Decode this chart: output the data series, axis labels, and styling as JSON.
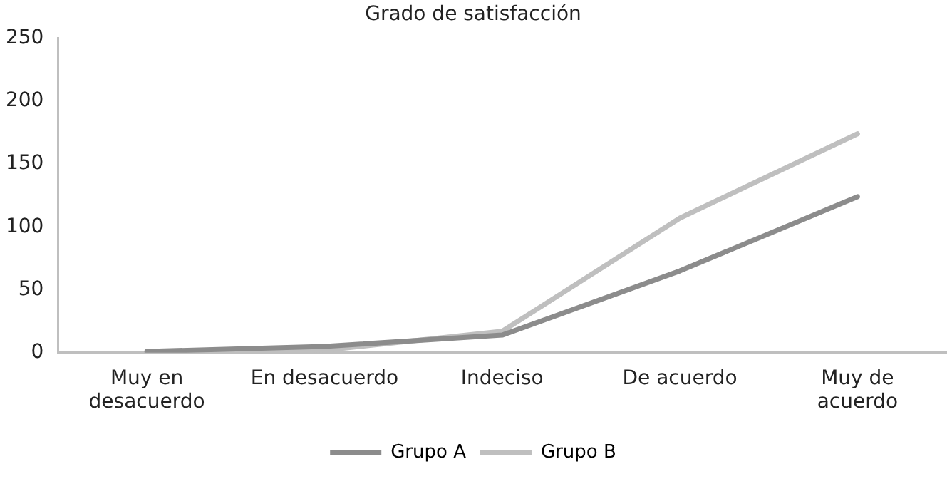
{
  "chart_data": {
    "type": "line",
    "title": "Grado de satisfacción",
    "categories": [
      "Muy en desacuerdo",
      "En desacuerdo",
      "Indeciso",
      "De acuerdo",
      "Muy de acuerdo"
    ],
    "series": [
      {
        "name": "Grupo A",
        "color": "#8c8c8c",
        "values": [
          1,
          5,
          14,
          65,
          124
        ]
      },
      {
        "name": "Grupo B",
        "color": "#bfbfbf",
        "values": [
          0,
          2,
          17,
          107,
          174
        ]
      }
    ],
    "ylim": [
      0,
      250
    ],
    "yticks": [
      0,
      50,
      100,
      150,
      200,
      250
    ],
    "grid": false,
    "legend": "bottom",
    "marker": "none",
    "line_style": "solid"
  }
}
